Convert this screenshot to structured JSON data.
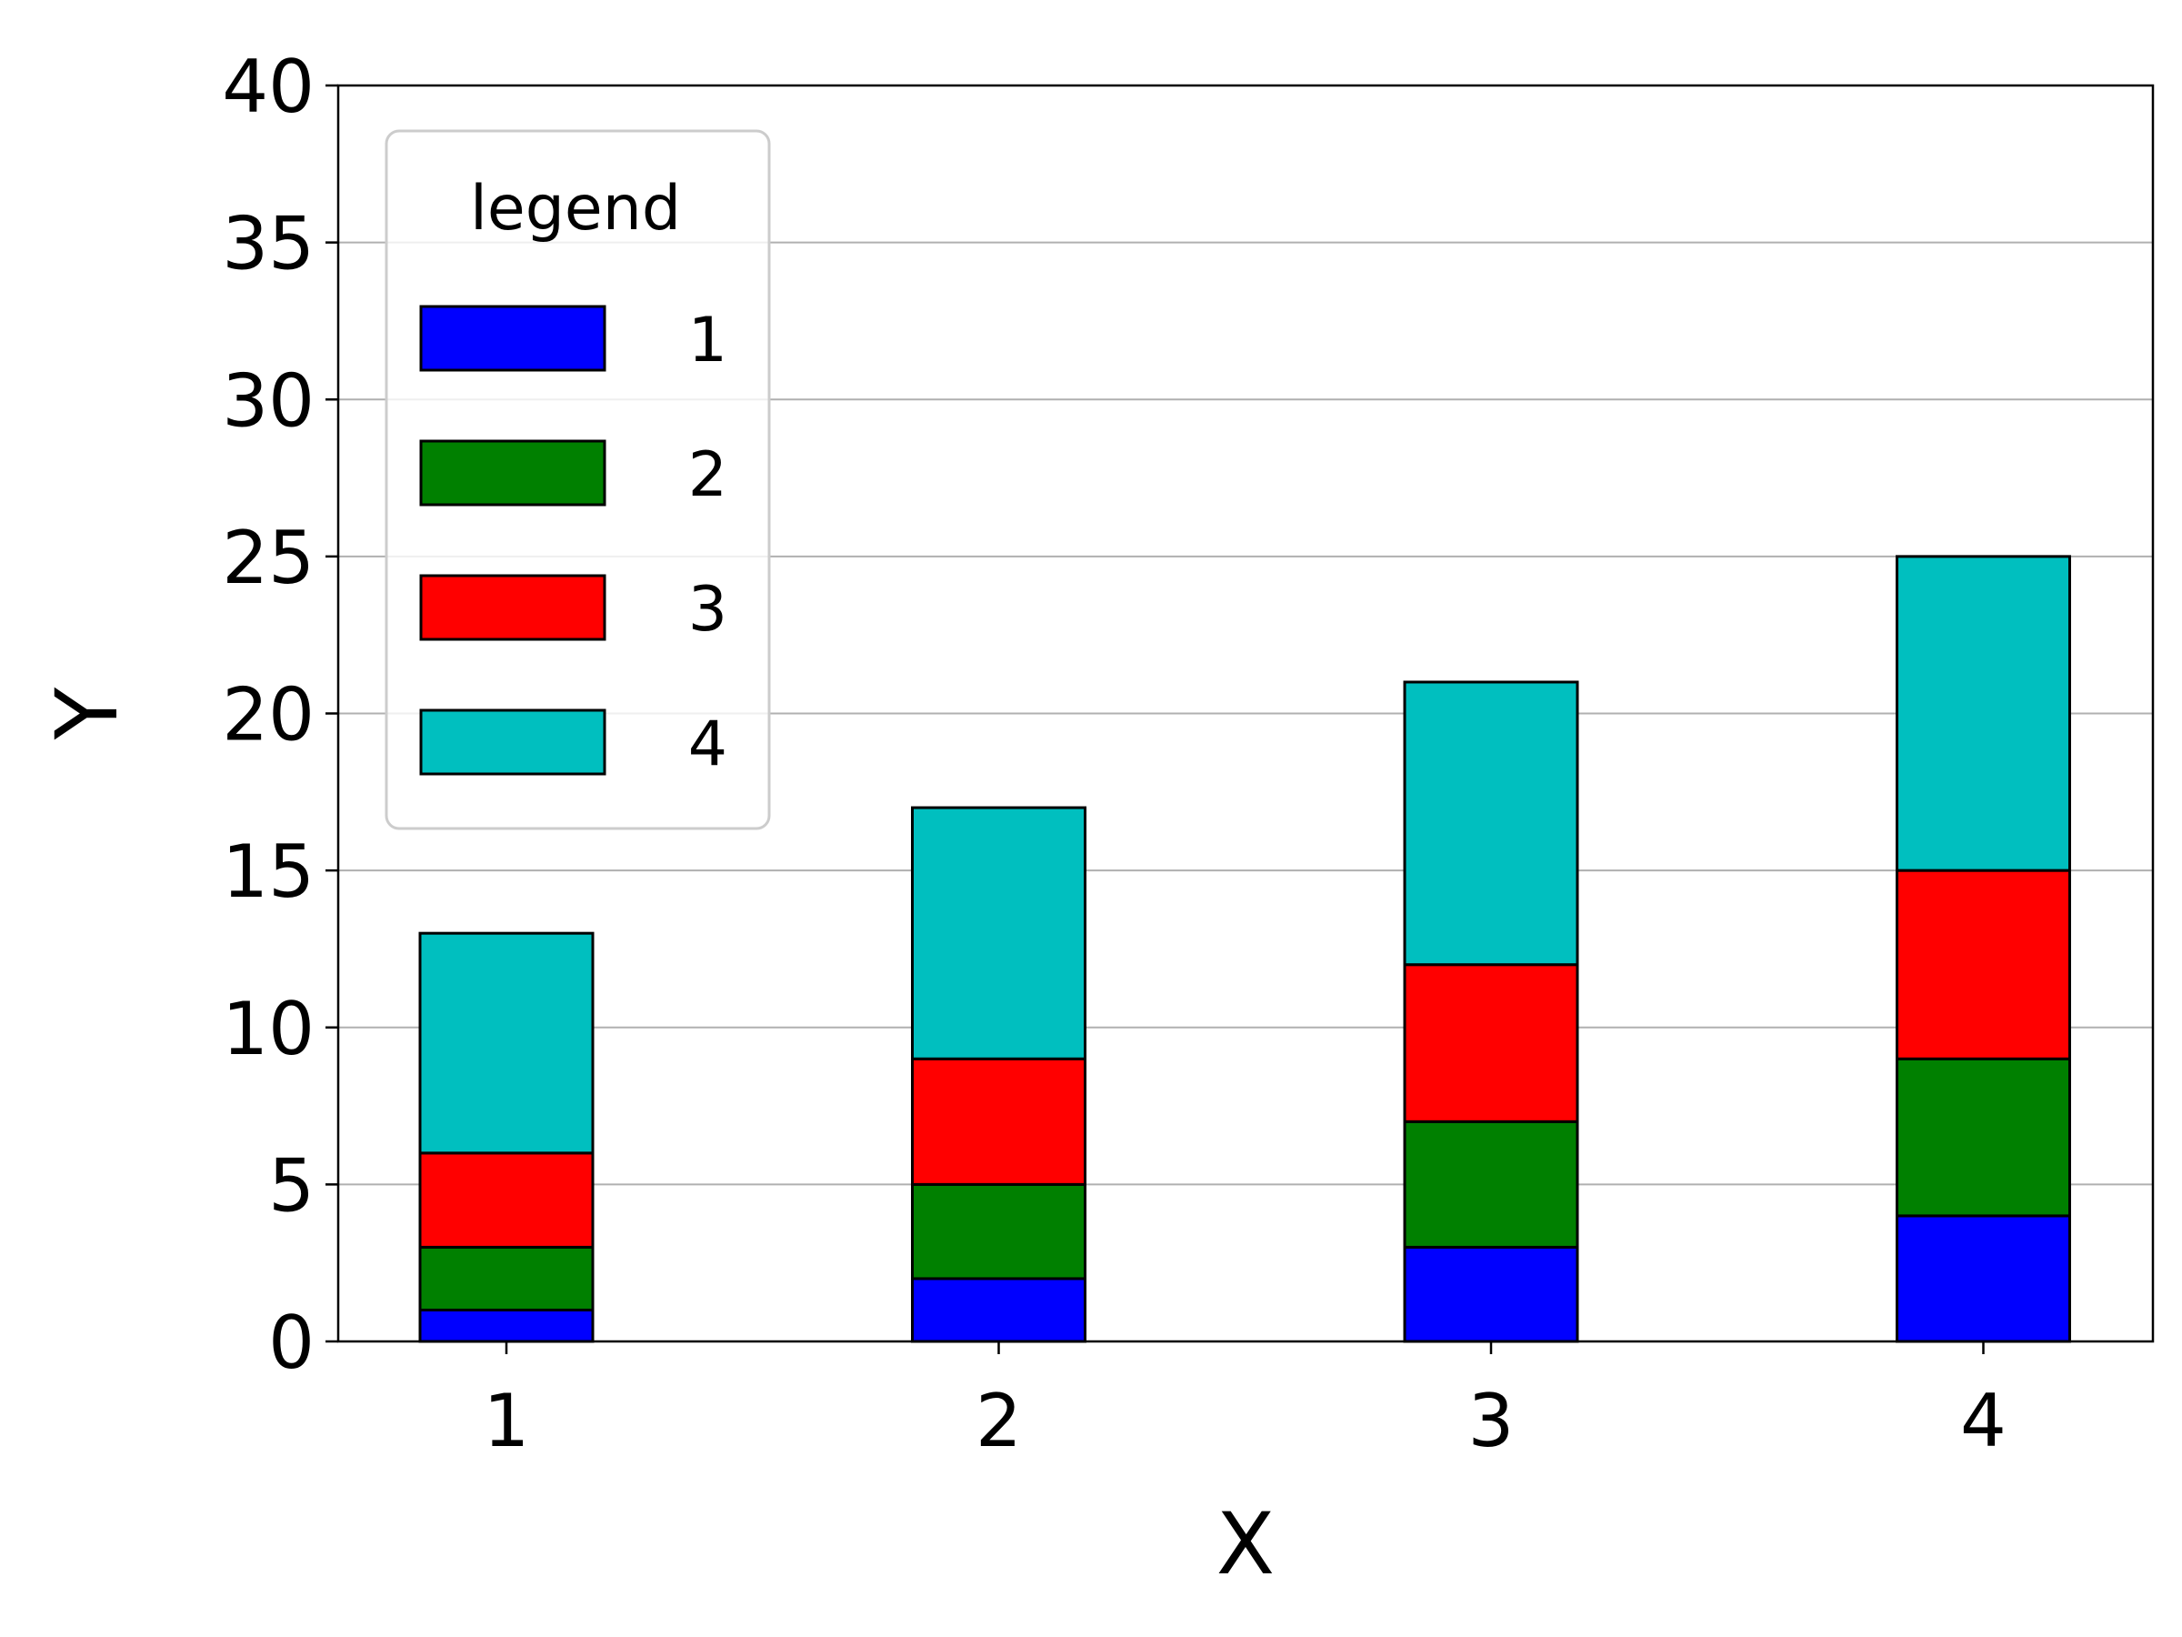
{
  "chart_data": {
    "type": "bar",
    "stacked": true,
    "categories": [
      "1",
      "2",
      "3",
      "4"
    ],
    "series": [
      {
        "name": "1",
        "color": "#0000ff",
        "values": [
          1,
          2,
          3,
          4
        ]
      },
      {
        "name": "2",
        "color": "#008000",
        "values": [
          2,
          3,
          4,
          5
        ]
      },
      {
        "name": "3",
        "color": "#ff0000",
        "values": [
          3,
          4,
          5,
          6
        ]
      },
      {
        "name": "4",
        "color": "#00bfbf",
        "values": [
          7,
          8,
          9,
          10
        ]
      }
    ],
    "title": "",
    "xlabel": "X",
    "ylabel": "Y",
    "ylim": [
      0,
      40
    ],
    "yticks": [
      "0",
      "5",
      "10",
      "15",
      "20",
      "25",
      "30",
      "35",
      "40"
    ],
    "grid": "y",
    "legend": {
      "title": "legend",
      "placement": "top-left"
    }
  }
}
